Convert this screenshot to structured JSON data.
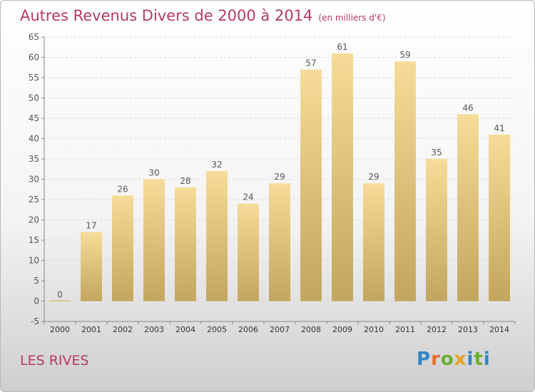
{
  "header": {
    "title": "Autres Revenus Divers de 2000 à 2014",
    "unit": "(en milliers d'€)"
  },
  "footer": {
    "commune": "LES RIVES",
    "logo_text": "Proxiti"
  },
  "colors": {
    "title": "#b53a61",
    "bar_top": "#f6dc98",
    "bar_bottom": "#c3a55e",
    "grid": "#d8d8d8"
  },
  "chart_data": {
    "type": "bar",
    "title": "Autres Revenus Divers de 2000 à 2014",
    "ylabel": "",
    "xlabel": "",
    "categories": [
      "2000",
      "2001",
      "2002",
      "2003",
      "2004",
      "2005",
      "2006",
      "2007",
      "2008",
      "2009",
      "2010",
      "2011",
      "2012",
      "2013",
      "2014"
    ],
    "values": [
      0,
      17,
      26,
      30,
      28,
      32,
      24,
      29,
      57,
      61,
      29,
      59,
      35,
      46,
      41
    ],
    "ylim": [
      -5,
      65
    ],
    "yticks": [
      -5,
      0,
      5,
      10,
      15,
      20,
      25,
      30,
      35,
      40,
      45,
      50,
      55,
      60,
      65
    ],
    "grid": true,
    "legend": "none"
  }
}
